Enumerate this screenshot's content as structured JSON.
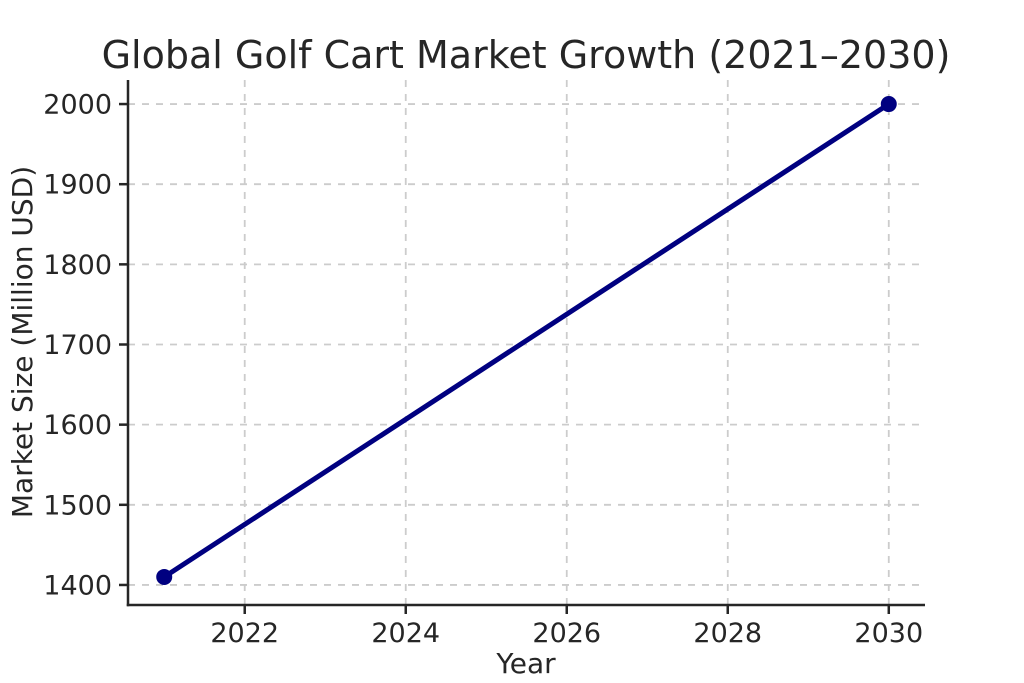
{
  "chart_data": {
    "type": "line",
    "title": "Global Golf Cart Market Growth (2021–2030)",
    "xlabel": "Year",
    "ylabel": "Market Size (Million USD)",
    "x": [
      2021,
      2030
    ],
    "series": [
      {
        "name": "Market Size",
        "values": [
          1410,
          2000
        ]
      }
    ],
    "xticks": [
      2022,
      2024,
      2026,
      2028,
      2030
    ],
    "yticks": [
      1400,
      1500,
      1600,
      1700,
      1800,
      1900,
      2000
    ],
    "xlim": [
      2020.55,
      2030.45
    ],
    "ylim": [
      1375,
      2030
    ],
    "grid": true,
    "grid_style": "dashed",
    "legend": "none",
    "colors": {
      "line": "#000080",
      "marker": "#000080",
      "grid": "#cccccc",
      "spine": "#262626",
      "text": "#262626",
      "background": "#ffffff"
    }
  }
}
